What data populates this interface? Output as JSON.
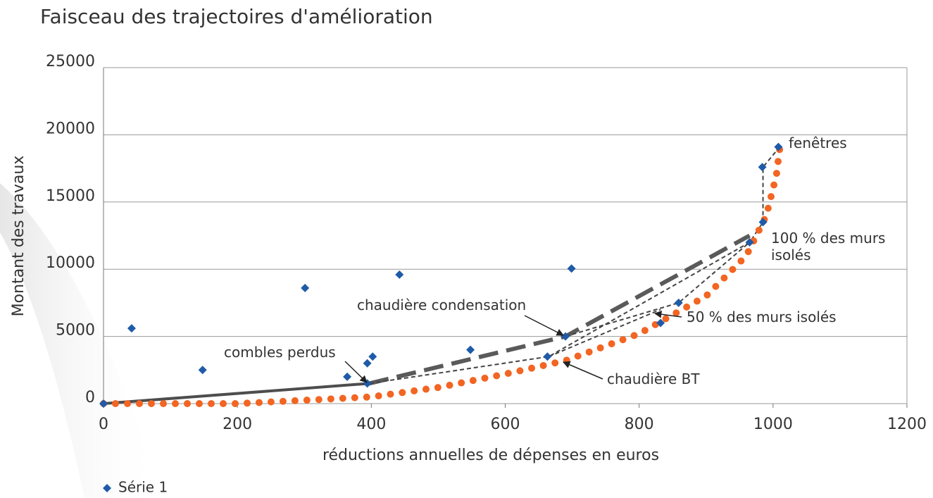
{
  "chart_data": {
    "type": "scatter",
    "title": "Faisceau des trajectoires d'amélioration",
    "x_label": "réductions annuelles de dépenses en euros",
    "y_label": "Montant des travaux",
    "xlim": [
      0,
      1200
    ],
    "xticks": [
      0,
      200,
      400,
      600,
      800,
      1000,
      1200
    ],
    "ylim": [
      0,
      25000
    ],
    "yticks": [
      0,
      5000,
      10000,
      15000,
      20000,
      25000
    ],
    "grid": true,
    "legend": "bottom-left",
    "series": [
      {
        "name": "Série 1",
        "color": "#1f5ba8",
        "marker": "diamond",
        "x": [
          0,
          42,
          148,
          301,
          364,
          394,
          402,
          394,
          442,
          548,
          663,
          690,
          699,
          832,
          859,
          965,
          985,
          984,
          1008
        ],
        "values": [
          0,
          5600,
          2500,
          8600,
          2000,
          3000,
          3500,
          1500,
          9600,
          4000,
          3500,
          5000,
          10050,
          6000,
          7500,
          12000,
          13500,
          17600,
          19100
        ]
      },
      {
        "color": "#4d4d4d",
        "style": "solid",
        "x": [
          0,
          397
        ],
        "values": [
          0,
          1500
        ]
      },
      {
        "color": "#5a5a5a",
        "style": "dash",
        "x": [
          397,
          690,
          965
        ],
        "values": [
          1500,
          5000,
          12500
        ]
      },
      {
        "color": "#444444",
        "style": "shortdash",
        "x": [
          397,
          665,
          965,
          985,
          985,
          1010
        ],
        "values": [
          1500,
          3500,
          12000,
          13500,
          17600,
          19100
        ]
      },
      {
        "color": "#444444",
        "style": "shortdash",
        "x": [
          690,
          859,
          965
        ],
        "values": [
          5000,
          7500,
          12000
        ]
      },
      {
        "color": "#444444",
        "style": "shortdash",
        "x": [
          665,
          832
        ],
        "values": [
          3500,
          7000
        ]
      },
      {
        "color": "#f26522",
        "style": "dot",
        "x": [
          0,
          200,
          400,
          500,
          600,
          690,
          800,
          900,
          960,
          990,
          1005,
          1010
        ],
        "values": [
          0,
          0,
          500,
          1200,
          2200,
          3200,
          5200,
          8000,
          11000,
          14000,
          17000,
          19000
        ]
      }
    ],
    "annotations": [
      "fenêtres",
      "100 % des murs isolés",
      "chaudière condensation",
      "50 % des murs isolés",
      "combles perdus",
      "chaudière BT"
    ]
  }
}
